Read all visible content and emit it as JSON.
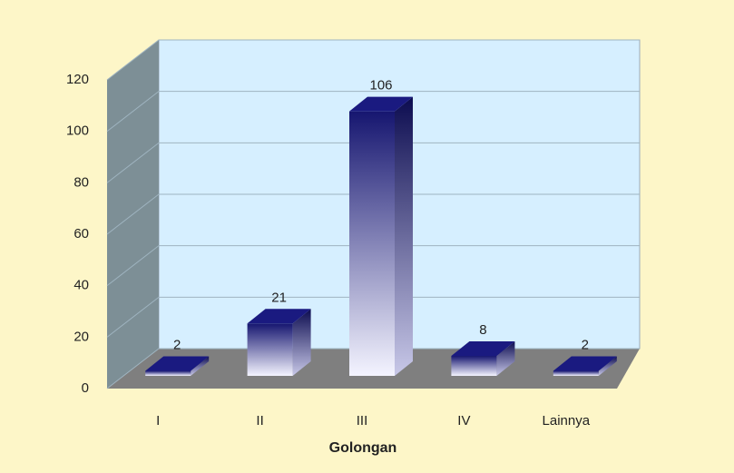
{
  "chart_data": {
    "type": "bar3d",
    "x_label": "Golongan",
    "categories": [
      "I",
      "II",
      "III",
      "IV",
      "Lainnya"
    ],
    "values": [
      2,
      21,
      106,
      8,
      2
    ],
    "color": "#1a1a80",
    "ylim": [
      0,
      120
    ],
    "yticks": [
      0,
      20,
      40,
      60,
      80,
      100,
      120
    ],
    "grid": true
  }
}
